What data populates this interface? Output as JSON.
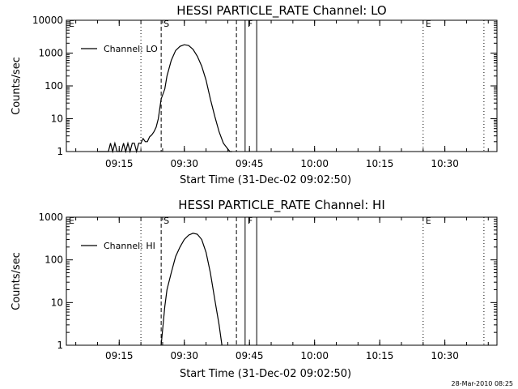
{
  "chart_data": [
    {
      "type": "line",
      "title": "HESSI PARTICLE_RATE Channel: LO",
      "xlabel": "Start Time (31-Dec-02 09:02:50)",
      "ylabel": "Counts/sec",
      "y_scale": "log",
      "ylim": [
        1,
        10000
      ],
      "y_tick_labels": [
        "1",
        "10",
        "100",
        "1000",
        "10000"
      ],
      "y_tick_values": [
        1,
        10,
        100,
        1000,
        10000
      ],
      "xlim": [
        "09:02:50",
        "10:42:00"
      ],
      "x_tick_labels": [
        "09:15",
        "09:30",
        "09:45",
        "10:00",
        "10:15",
        "10:30"
      ],
      "x_tick_values": [
        "09:15",
        "09:30",
        "09:45",
        "10:00",
        "10:15",
        "10:30"
      ],
      "legend": {
        "label": "Channel: LO",
        "placement": "top-left"
      },
      "markers": [
        {
          "label": "E",
          "time": "09:02:50",
          "style": "dotted"
        },
        {
          "label": "",
          "time": "09:20:00",
          "style": "dotted"
        },
        {
          "label": "S",
          "time": "09:24:40",
          "style": "dashed"
        },
        {
          "label": "",
          "time": "09:42:00",
          "style": "dashed"
        },
        {
          "label": "F",
          "time": "09:44:00",
          "style": "solid"
        },
        {
          "label": "",
          "time": "09:46:40",
          "style": "solid"
        },
        {
          "label": "E",
          "time": "10:25:00",
          "style": "dotted"
        },
        {
          "label": "",
          "time": "10:39:00",
          "style": "dotted"
        }
      ],
      "series": [
        {
          "name": "Channel: LO",
          "x": [
            "09:10:00",
            "09:10:30",
            "09:11:00",
            "09:11:30",
            "09:12:00",
            "09:12:30",
            "09:13:00",
            "09:13:30",
            "09:14:00",
            "09:14:30",
            "09:15:00",
            "09:15:30",
            "09:16:00",
            "09:16:30",
            "09:17:00",
            "09:17:30",
            "09:18:00",
            "09:18:30",
            "09:19:00",
            "09:19:30",
            "09:20:00",
            "09:20:30",
            "09:21:00",
            "09:21:30",
            "09:22:00",
            "09:22:30",
            "09:23:00",
            "09:23:30",
            "09:24:00",
            "09:24:40",
            "09:25:30",
            "09:26:00",
            "09:27:00",
            "09:28:00",
            "09:29:00",
            "09:30:00",
            "09:31:00",
            "09:32:00",
            "09:33:00",
            "09:34:00",
            "09:35:00",
            "09:36:00",
            "09:37:00",
            "09:38:00",
            "09:39:00",
            "09:40:00",
            "09:40:30",
            "09:41:00"
          ],
          "values": [
            1,
            1,
            1,
            1,
            1,
            1,
            1.8,
            1,
            1.8,
            1,
            1,
            1,
            1.8,
            1,
            1.8,
            1,
            1.8,
            1.8,
            1,
            1.8,
            1.8,
            2.5,
            2.0,
            2.0,
            2.8,
            3.2,
            4.0,
            5.5,
            10,
            40,
            80,
            200,
            600,
            1200,
            1600,
            1800,
            1700,
            1300,
            800,
            400,
            150,
            40,
            12,
            4,
            1.8,
            1.2,
            1,
            1
          ]
        }
      ]
    },
    {
      "type": "line",
      "title": "HESSI PARTICLE_RATE Channel: HI",
      "xlabel": "Start Time (31-Dec-02 09:02:50)",
      "ylabel": "Counts/sec",
      "y_scale": "log",
      "ylim": [
        1,
        1000
      ],
      "y_tick_labels": [
        "1",
        "10",
        "100",
        "1000"
      ],
      "y_tick_values": [
        1,
        10,
        100,
        1000
      ],
      "xlim": [
        "09:02:50",
        "10:42:00"
      ],
      "x_tick_labels": [
        "09:15",
        "09:30",
        "09:45",
        "10:00",
        "10:15",
        "10:30"
      ],
      "x_tick_values": [
        "09:15",
        "09:30",
        "09:45",
        "10:00",
        "10:15",
        "10:30"
      ],
      "legend": {
        "label": "Channel: HI",
        "placement": "top-left"
      },
      "markers": [
        {
          "label": "E",
          "time": "09:02:50",
          "style": "dotted"
        },
        {
          "label": "",
          "time": "09:20:00",
          "style": "dotted"
        },
        {
          "label": "S",
          "time": "09:24:40",
          "style": "dashed"
        },
        {
          "label": "",
          "time": "09:42:00",
          "style": "dashed"
        },
        {
          "label": "F",
          "time": "09:44:00",
          "style": "solid"
        },
        {
          "label": "",
          "time": "09:46:40",
          "style": "solid"
        },
        {
          "label": "E",
          "time": "10:25:00",
          "style": "dotted"
        },
        {
          "label": "",
          "time": "10:39:00",
          "style": "dotted"
        }
      ],
      "series": [
        {
          "name": "Channel: HI",
          "x": [
            "09:24:40",
            "09:25:30",
            "09:26:00",
            "09:27:00",
            "09:28:00",
            "09:29:00",
            "09:30:00",
            "09:31:00",
            "09:32:00",
            "09:33:00",
            "09:34:00",
            "09:35:00",
            "09:36:00",
            "09:37:00",
            "09:38:00",
            "09:38:40"
          ],
          "values": [
            1,
            8,
            20,
            50,
            120,
            200,
            300,
            380,
            420,
            400,
            300,
            150,
            50,
            12,
            3,
            1
          ]
        }
      ]
    }
  ],
  "footer": {
    "timestamp": "28-Mar-2010 08:25"
  }
}
